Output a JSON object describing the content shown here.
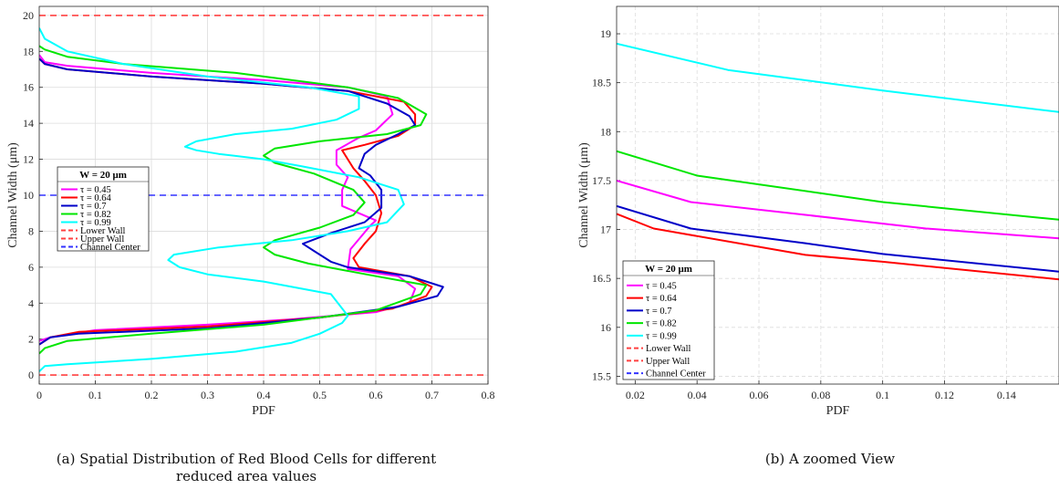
{
  "chart_data": [
    {
      "type": "line",
      "xlabel": "PDF",
      "ylabel": "Channel Width (μm)",
      "xlim": [
        0,
        0.8
      ],
      "ylim": [
        -0.5,
        20.5
      ],
      "xticks": [
        "0",
        "0.1",
        "0.2",
        "0.3",
        "0.4",
        "0.5",
        "0.6",
        "0.7",
        "0.8"
      ],
      "yticks": [
        "0",
        "2",
        "4",
        "6",
        "8",
        "10",
        "12",
        "14",
        "16",
        "18",
        "20"
      ],
      "grid": true,
      "legend_position": "center-left",
      "legend_title": "W = 20 μm",
      "series": [
        {
          "name": "τ = 0.45",
          "color": "#ff00ff",
          "points": [
            [
              0,
              1.9
            ],
            [
              0.02,
              2.1
            ],
            [
              0.1,
              2.5
            ],
            [
              0.3,
              2.8
            ],
            [
              0.45,
              3.1
            ],
            [
              0.6,
              3.5
            ],
            [
              0.66,
              4.0
            ],
            [
              0.67,
              4.8
            ],
            [
              0.64,
              5.5
            ],
            [
              0.55,
              5.9
            ],
            [
              0.555,
              7.0
            ],
            [
              0.59,
              8.3
            ],
            [
              0.6,
              8.6
            ],
            [
              0.57,
              9.0
            ],
            [
              0.54,
              9.4
            ],
            [
              0.54,
              10.3
            ],
            [
              0.55,
              11.0
            ],
            [
              0.53,
              11.7
            ],
            [
              0.53,
              12.5
            ],
            [
              0.57,
              13.2
            ],
            [
              0.6,
              13.6
            ],
            [
              0.63,
              14.5
            ],
            [
              0.62,
              15.5
            ],
            [
              0.55,
              16.0
            ],
            [
              0.4,
              16.4
            ],
            [
              0.2,
              16.8
            ],
            [
              0.05,
              17.2
            ],
            [
              0.01,
              17.4
            ],
            [
              0,
              17.8
            ]
          ]
        },
        {
          "name": "τ = 0.64",
          "color": "#ff0000",
          "points": [
            [
              0,
              1.7
            ],
            [
              0.02,
              2.1
            ],
            [
              0.07,
              2.4
            ],
            [
              0.3,
              2.7
            ],
            [
              0.5,
              3.2
            ],
            [
              0.63,
              3.7
            ],
            [
              0.69,
              4.4
            ],
            [
              0.7,
              4.9
            ],
            [
              0.66,
              5.5
            ],
            [
              0.57,
              6.0
            ],
            [
              0.56,
              6.5
            ],
            [
              0.58,
              7.3
            ],
            [
              0.6,
              8.0
            ],
            [
              0.61,
              9.0
            ],
            [
              0.6,
              10.0
            ],
            [
              0.58,
              10.8
            ],
            [
              0.56,
              11.5
            ],
            [
              0.54,
              12.5
            ],
            [
              0.58,
              12.8
            ],
            [
              0.64,
              13.3
            ],
            [
              0.67,
              13.9
            ],
            [
              0.67,
              14.5
            ],
            [
              0.65,
              15.2
            ],
            [
              0.55,
              15.8
            ],
            [
              0.4,
              16.2
            ],
            [
              0.2,
              16.6
            ],
            [
              0.05,
              17.0
            ],
            [
              0.01,
              17.3
            ],
            [
              0,
              17.6
            ]
          ]
        },
        {
          "name": "τ = 0.7",
          "color": "#0000c8",
          "points": [
            [
              0,
              1.7
            ],
            [
              0.02,
              2.1
            ],
            [
              0.07,
              2.3
            ],
            [
              0.3,
              2.6
            ],
            [
              0.5,
              3.2
            ],
            [
              0.64,
              3.8
            ],
            [
              0.71,
              4.4
            ],
            [
              0.72,
              4.9
            ],
            [
              0.66,
              5.5
            ],
            [
              0.55,
              6.0
            ],
            [
              0.52,
              6.3
            ],
            [
              0.49,
              6.9
            ],
            [
              0.47,
              7.3
            ],
            [
              0.52,
              7.9
            ],
            [
              0.58,
              8.5
            ],
            [
              0.61,
              9.3
            ],
            [
              0.61,
              10.3
            ],
            [
              0.59,
              11.1
            ],
            [
              0.57,
              11.5
            ],
            [
              0.58,
              12.3
            ],
            [
              0.6,
              12.8
            ],
            [
              0.64,
              13.4
            ],
            [
              0.67,
              13.9
            ],
            [
              0.66,
              14.4
            ],
            [
              0.62,
              15.1
            ],
            [
              0.55,
              15.8
            ],
            [
              0.4,
              16.2
            ],
            [
              0.2,
              16.6
            ],
            [
              0.05,
              17.0
            ],
            [
              0.01,
              17.3
            ],
            [
              0,
              17.6
            ]
          ]
        },
        {
          "name": "τ = 0.82",
          "color": "#00e600",
          "points": [
            [
              0,
              1.2
            ],
            [
              0.01,
              1.5
            ],
            [
              0.05,
              1.9
            ],
            [
              0.2,
              2.3
            ],
            [
              0.4,
              2.8
            ],
            [
              0.6,
              3.6
            ],
            [
              0.68,
              4.5
            ],
            [
              0.69,
              5.0
            ],
            [
              0.6,
              5.5
            ],
            [
              0.48,
              6.2
            ],
            [
              0.42,
              6.7
            ],
            [
              0.4,
              7.1
            ],
            [
              0.42,
              7.5
            ],
            [
              0.5,
              8.2
            ],
            [
              0.56,
              8.9
            ],
            [
              0.58,
              9.6
            ],
            [
              0.56,
              10.3
            ],
            [
              0.49,
              11.2
            ],
            [
              0.42,
              11.8
            ],
            [
              0.4,
              12.2
            ],
            [
              0.42,
              12.6
            ],
            [
              0.5,
              13.0
            ],
            [
              0.62,
              13.4
            ],
            [
              0.68,
              13.9
            ],
            [
              0.69,
              14.5
            ],
            [
              0.64,
              15.4
            ],
            [
              0.55,
              16.0
            ],
            [
              0.35,
              16.8
            ],
            [
              0.15,
              17.3
            ],
            [
              0.05,
              17.7
            ],
            [
              0.01,
              18.1
            ],
            [
              0,
              18.3
            ]
          ]
        },
        {
          "name": "τ = 0.99",
          "color": "#00ffff",
          "points": [
            [
              0,
              0.2
            ],
            [
              0.01,
              0.5
            ],
            [
              0.05,
              0.6
            ],
            [
              0.2,
              0.9
            ],
            [
              0.35,
              1.3
            ],
            [
              0.45,
              1.8
            ],
            [
              0.5,
              2.3
            ],
            [
              0.54,
              2.9
            ],
            [
              0.55,
              3.3
            ],
            [
              0.52,
              4.5
            ],
            [
              0.4,
              5.2
            ],
            [
              0.3,
              5.6
            ],
            [
              0.25,
              6.0
            ],
            [
              0.23,
              6.4
            ],
            [
              0.24,
              6.7
            ],
            [
              0.32,
              7.1
            ],
            [
              0.45,
              7.5
            ],
            [
              0.55,
              8.0
            ],
            [
              0.62,
              8.5
            ],
            [
              0.65,
              9.5
            ],
            [
              0.64,
              10.3
            ],
            [
              0.57,
              11.0
            ],
            [
              0.47,
              11.6
            ],
            [
              0.4,
              12.0
            ],
            [
              0.32,
              12.3
            ],
            [
              0.28,
              12.5
            ],
            [
              0.26,
              12.7
            ],
            [
              0.28,
              13.0
            ],
            [
              0.35,
              13.4
            ],
            [
              0.45,
              13.7
            ],
            [
              0.53,
              14.2
            ],
            [
              0.57,
              14.8
            ],
            [
              0.57,
              15.5
            ],
            [
              0.48,
              16.0
            ],
            [
              0.3,
              16.6
            ],
            [
              0.15,
              17.3
            ],
            [
              0.05,
              18.0
            ],
            [
              0.01,
              18.7
            ],
            [
              0,
              19.3
            ]
          ]
        },
        {
          "name": "Lower Wall",
          "color": "#ff4040",
          "dashed": true,
          "points": [
            [
              0,
              0
            ],
            [
              0.8,
              0
            ]
          ]
        },
        {
          "name": "Upper Wall",
          "color": "#ff4040",
          "dashed": true,
          "points": [
            [
              0,
              20
            ],
            [
              0.8,
              20
            ]
          ]
        },
        {
          "name": "Channel Center",
          "color": "#3333ff",
          "dashed": true,
          "points": [
            [
              0,
              10
            ],
            [
              0.8,
              10
            ]
          ]
        }
      ],
      "caption": [
        "(a) Spatial Distribution of Red Blood Cells for different",
        "reduced area values"
      ]
    },
    {
      "type": "line",
      "xlabel": "PDF",
      "ylabel": "Channel Width (μm)",
      "xlim": [
        0.014,
        0.157
      ],
      "ylim": [
        15.42,
        19.28
      ],
      "xticks": [
        "0.02",
        "0.04",
        "0.06",
        "0.08",
        "0.1",
        "0.12",
        "0.14"
      ],
      "yticks": [
        "15.5",
        "16",
        "16.5",
        "17",
        "17.5",
        "18",
        "18.5",
        "19"
      ],
      "grid": true,
      "legend_position": "bottom-left",
      "legend_title": "W = 20 μm",
      "series": [
        {
          "name": "τ = 0.45",
          "color": "#ff00ff",
          "points": [
            [
              0.014,
              17.5
            ],
            [
              0.038,
              17.28
            ],
            [
              0.075,
              17.15
            ],
            [
              0.114,
              17.01
            ],
            [
              0.157,
              16.91
            ]
          ]
        },
        {
          "name": "τ = 0.64",
          "color": "#ff0000",
          "points": [
            [
              0.014,
              17.16
            ],
            [
              0.026,
              17.01
            ],
            [
              0.075,
              16.74
            ],
            [
              0.1,
              16.67
            ],
            [
              0.157,
              16.49
            ]
          ]
        },
        {
          "name": "τ = 0.7",
          "color": "#0000c8",
          "points": [
            [
              0.014,
              17.24
            ],
            [
              0.038,
              17.01
            ],
            [
              0.075,
              16.86
            ],
            [
              0.1,
              16.75
            ],
            [
              0.157,
              16.57
            ]
          ]
        },
        {
          "name": "τ = 0.82",
          "color": "#00e600",
          "points": [
            [
              0.014,
              17.8
            ],
            [
              0.04,
              17.55
            ],
            [
              0.1,
              17.28
            ],
            [
              0.157,
              17.1
            ]
          ]
        },
        {
          "name": "τ = 0.99",
          "color": "#00ffff",
          "points": [
            [
              0.014,
              18.9
            ],
            [
              0.05,
              18.63
            ],
            [
              0.1,
              18.42
            ],
            [
              0.157,
              18.2
            ]
          ]
        },
        {
          "name": "Lower Wall",
          "color": "#ff4040",
          "dashed": true,
          "points": []
        },
        {
          "name": "Upper Wall",
          "color": "#ff4040",
          "dashed": true,
          "points": []
        },
        {
          "name": "Channel Center",
          "color": "#3333ff",
          "dashed": true,
          "points": []
        }
      ],
      "caption": [
        "(b) A zoomed View"
      ]
    }
  ]
}
